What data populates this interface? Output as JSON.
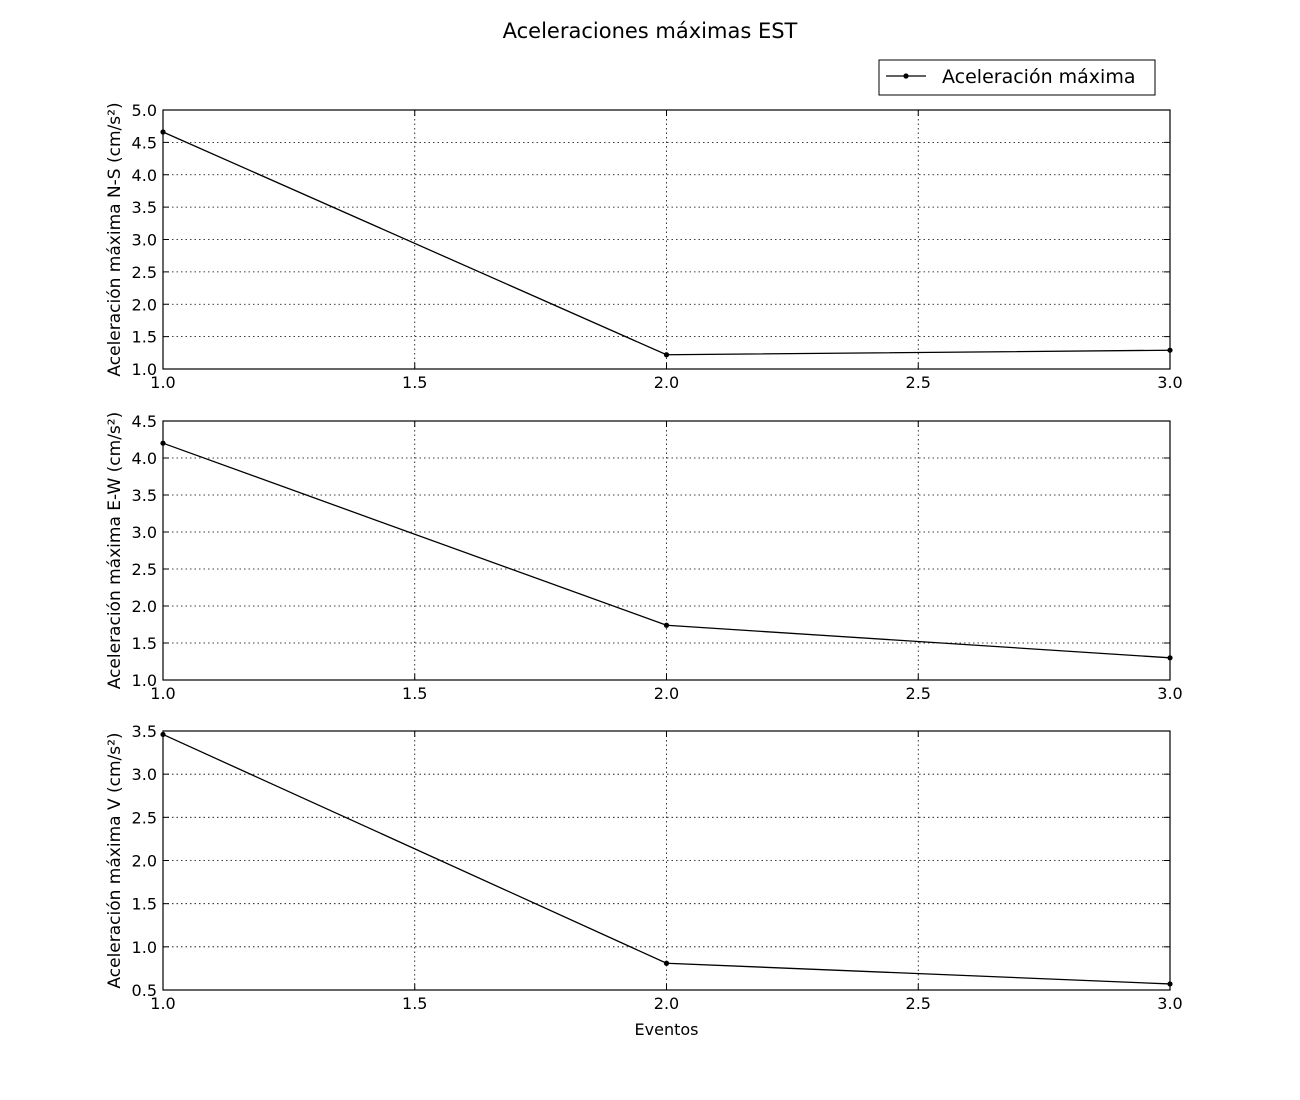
{
  "figure": {
    "title": "Aceleraciones máximas EST",
    "legend_label": "Aceleración máxima"
  },
  "chart_data": [
    {
      "type": "line",
      "title": "",
      "xlabel": "",
      "ylabel": "Aceleración máxima N-S (cm/s²)",
      "x": [
        1,
        2,
        3
      ],
      "series": [
        {
          "name": "Aceleración máxima",
          "values": [
            4.66,
            1.22,
            1.29
          ],
          "color": "#000000"
        }
      ],
      "xlim": [
        1.0,
        3.0
      ],
      "ylim": [
        1.0,
        5.0
      ],
      "xticks": [
        "1.0",
        "1.5",
        "2.0",
        "2.5",
        "3.0"
      ],
      "yticks": [
        "1.0",
        "1.5",
        "2.0",
        "2.5",
        "3.0",
        "3.5",
        "4.0",
        "4.5",
        "5.0"
      ],
      "grid": true,
      "legend": "upper-right"
    },
    {
      "type": "line",
      "title": "",
      "xlabel": "",
      "ylabel": "Aceleración máxima E-W (cm/s²)",
      "x": [
        1,
        2,
        3
      ],
      "series": [
        {
          "name": "Aceleración máxima",
          "values": [
            4.2,
            1.74,
            1.3
          ],
          "color": "#000000"
        }
      ],
      "xlim": [
        1.0,
        3.0
      ],
      "ylim": [
        1.0,
        4.5
      ],
      "xticks": [
        "1.0",
        "1.5",
        "2.0",
        "2.5",
        "3.0"
      ],
      "yticks": [
        "1.0",
        "1.5",
        "2.0",
        "2.5",
        "3.0",
        "3.5",
        "4.0",
        "4.5"
      ],
      "grid": true
    },
    {
      "type": "line",
      "title": "",
      "xlabel": "Eventos",
      "ylabel": "Aceleración máxima V (cm/s²)",
      "x": [
        1,
        2,
        3
      ],
      "series": [
        {
          "name": "Aceleración máxima",
          "values": [
            3.46,
            0.81,
            0.57
          ],
          "color": "#000000"
        }
      ],
      "xlim": [
        1.0,
        3.0
      ],
      "ylim": [
        0.5,
        3.5
      ],
      "xticks": [
        "1.0",
        "1.5",
        "2.0",
        "2.5",
        "3.0"
      ],
      "yticks": [
        "0.5",
        "1.0",
        "1.5",
        "2.0",
        "2.5",
        "3.0",
        "3.5"
      ],
      "grid": true
    }
  ]
}
